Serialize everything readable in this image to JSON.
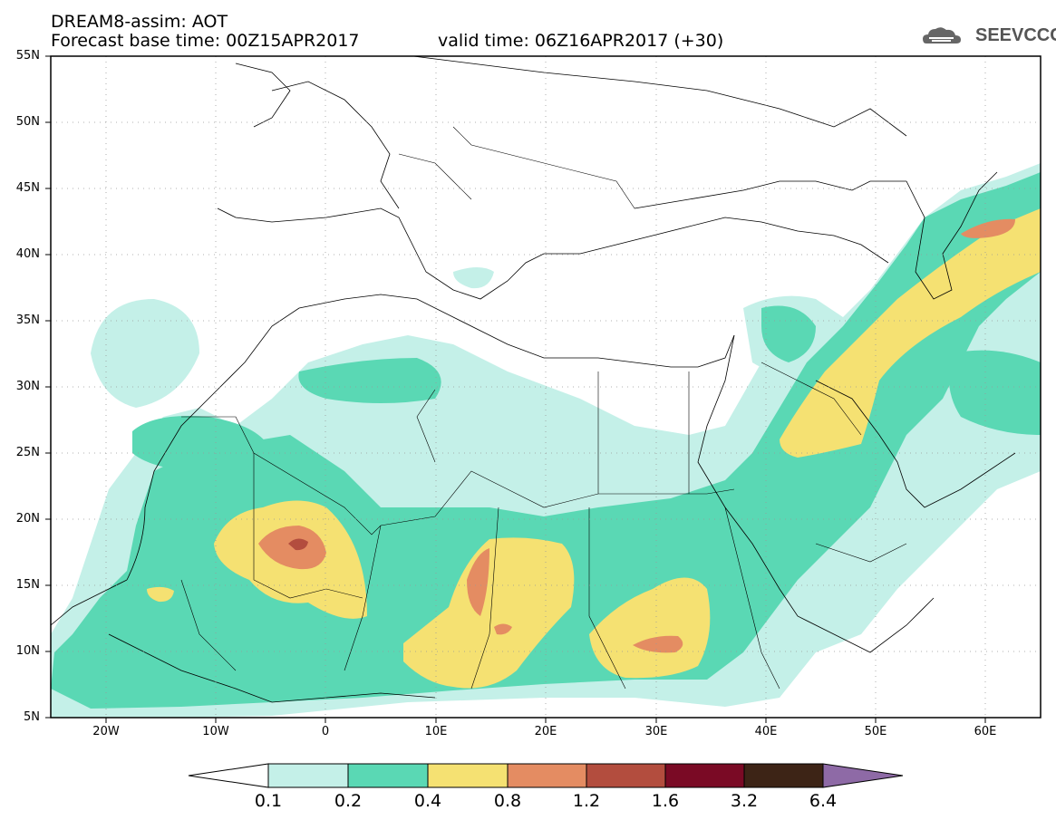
{
  "header": {
    "title": "DREAM8-assim: AOT",
    "base_time": "Forecast base time: 00Z15APR2017",
    "valid_time": "valid time: 06Z16APR2017 (+30)"
  },
  "logo": {
    "text": "SEEVCCC"
  },
  "map": {
    "projection": "lat-lon",
    "lon_range": [
      -25,
      65
    ],
    "lat_range": [
      5,
      55
    ],
    "lat_labels": [
      "55N",
      "50N",
      "45N",
      "40N",
      "35N",
      "30N",
      "25N",
      "20N",
      "15N",
      "10N",
      "5N"
    ],
    "lon_labels": [
      "20W",
      "10W",
      "0",
      "10E",
      "20E",
      "30E",
      "40E",
      "50E",
      "60E"
    ],
    "variable": "AOT"
  },
  "colorbar": {
    "levels": [
      "0.1",
      "0.2",
      "0.4",
      "0.8",
      "1.2",
      "1.6",
      "3.2",
      "6.4"
    ],
    "colors": [
      "#ffffff",
      "#c4f0e8",
      "#5ad8b4",
      "#f5e172",
      "#e48c62",
      "#b34d3e",
      "#7a0a25",
      "#3d2416",
      "#8e6aa6"
    ]
  }
}
